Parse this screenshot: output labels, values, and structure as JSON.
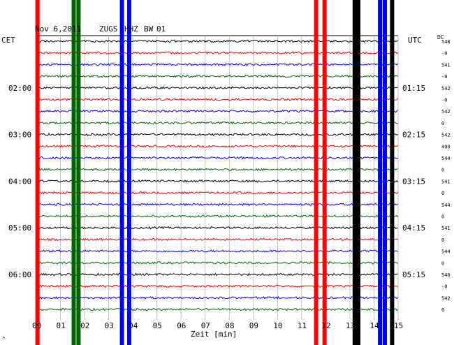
{
  "header": {
    "date": "Nov 6,2011",
    "station": "ZUGS",
    "channel": "HHZ",
    "network": "BW",
    "location": "01"
  },
  "left_zone": "CET",
  "right_zone": "UTC",
  "dc_label": "DC",
  "colors": {
    "black": "#000000",
    "red": "#ff0000",
    "blue": "#0000ff",
    "green": "#006400",
    "grid": "#b4b4b4"
  },
  "chart_data": {
    "type": "line",
    "title": "Nov 6,2011   ZUGS HHZ BW 01",
    "xlabel": "Zeit [min]",
    "xlim": [
      0,
      15
    ],
    "x_ticks": [
      "00",
      "01",
      "02",
      "03",
      "04",
      "05",
      "06",
      "07",
      "08",
      "09",
      "10",
      "11",
      "12",
      "13",
      "14",
      "15"
    ],
    "trace_count": 24,
    "trace_colors": [
      "black",
      "red",
      "blue",
      "green"
    ],
    "left_time_labels": [
      {
        "trace": 4,
        "text": "02:00"
      },
      {
        "trace": 8,
        "text": "03:00"
      },
      {
        "trace": 12,
        "text": "04:00"
      },
      {
        "trace": 16,
        "text": "05:00"
      },
      {
        "trace": 20,
        "text": "06:00"
      }
    ],
    "right_time_labels": [
      {
        "trace": 4,
        "text": "01:15"
      },
      {
        "trace": 8,
        "text": "02:15"
      },
      {
        "trace": 12,
        "text": "03:15"
      },
      {
        "trace": 16,
        "text": "04:15"
      },
      {
        "trace": 20,
        "text": "05:15"
      }
    ],
    "dc_values": [
      "540",
      "-0",
      "541",
      "-0",
      "542",
      "-0",
      "542",
      "0",
      "542",
      "400",
      "544",
      "0",
      "541",
      "0",
      "544",
      "0",
      "541",
      "0",
      "544",
      "0",
      "540",
      "-0",
      "542",
      "0"
    ],
    "events": [
      {
        "x": 0.05,
        "color": "red"
      },
      {
        "x": 1.55,
        "color": "green"
      },
      {
        "x": 1.75,
        "color": "green"
      },
      {
        "x": 3.55,
        "color": "blue"
      },
      {
        "x": 3.85,
        "color": "blue"
      },
      {
        "x": 11.6,
        "color": "red"
      },
      {
        "x": 11.95,
        "color": "red"
      },
      {
        "x": 13.2,
        "color": "black"
      },
      {
        "x": 13.35,
        "color": "black"
      },
      {
        "x": 14.25,
        "color": "blue"
      },
      {
        "x": 14.45,
        "color": "blue"
      },
      {
        "x": 14.75,
        "color": "black"
      }
    ],
    "footer_mark": "^"
  }
}
